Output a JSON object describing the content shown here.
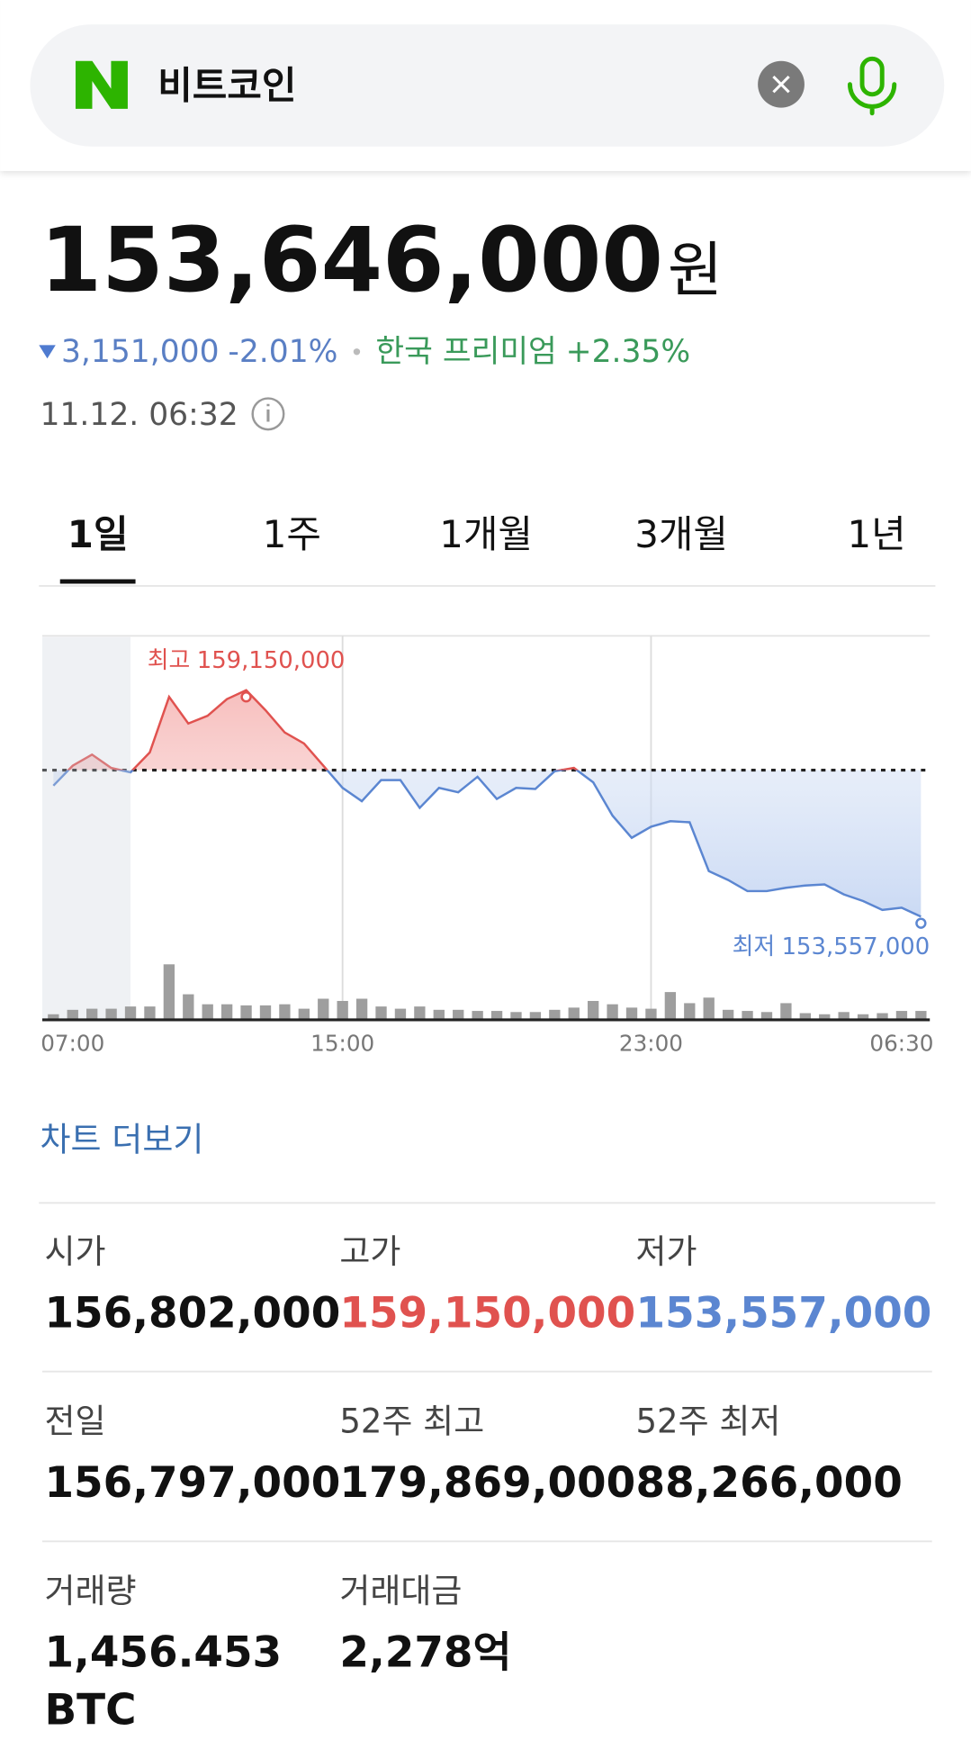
{
  "search": {
    "query": "비트코인"
  },
  "price": {
    "value": "153,646,000",
    "unit": "원"
  },
  "change": {
    "amount": "3,151,000",
    "percent": "-2.01%",
    "premium_label": "한국 프리미엄",
    "premium": "+2.35%"
  },
  "timestamp": "11.12. 06:32",
  "tabs": [
    "1일",
    "1주",
    "1개월",
    "3개월",
    "1년"
  ],
  "chart_data": {
    "type": "line",
    "categories": [
      null,
      "07:00",
      null,
      null,
      null,
      null,
      null,
      null,
      null,
      null,
      null,
      null,
      null,
      null,
      null,
      "15:00",
      null,
      null,
      null,
      null,
      null,
      null,
      null,
      null,
      null,
      null,
      null,
      null,
      null,
      null,
      null,
      "23:00",
      null,
      null,
      null,
      null,
      null,
      null,
      null,
      null,
      null,
      null,
      null,
      null,
      "06:30",
      null
    ],
    "values": [
      156792000,
      157285000,
      157560000,
      157231000,
      157121000,
      157614000,
      158985000,
      158327000,
      158519000,
      158931000,
      159150000,
      158656000,
      158108000,
      157834000,
      157285000,
      156737000,
      156408000,
      156929000,
      156929000,
      156243000,
      156737000,
      156627000,
      157011000,
      156463000,
      156737000,
      156710000,
      157148000,
      157231000,
      156874000,
      156052000,
      155503000,
      155777000,
      155914000,
      155887000,
      154681000,
      154461000,
      154187000,
      154187000,
      154269000,
      154324000,
      154352000,
      154105000,
      153940000,
      153721000,
      153776000,
      153557000
    ],
    "ylim": [
      152076000,
      160494000
    ],
    "baseline": 157176000,
    "volume": [
      5,
      9,
      10,
      10,
      12,
      12,
      50,
      23,
      14,
      14,
      13,
      13,
      14,
      10,
      19,
      17,
      19,
      12,
      10,
      12,
      9,
      9,
      8,
      8,
      7,
      7,
      9,
      11,
      17,
      14,
      11,
      10,
      25,
      15,
      20,
      9,
      8,
      7,
      15,
      6,
      5,
      7,
      5,
      6,
      8,
      8
    ],
    "volume_ylim": [
      0,
      60
    ],
    "annotations": {
      "high": {
        "label": "최고",
        "value_label": "159,150,000"
      },
      "low": {
        "label": "최저",
        "value_label": "153,557,000"
      }
    },
    "colors": {
      "up": "#e0524f",
      "down": "#5b86d1",
      "volume": "#9e9e9e"
    }
  },
  "more_link": "차트 더보기",
  "stats": [
    {
      "label": "시가",
      "value": "156,802,000"
    },
    {
      "label": "고가",
      "value": "159,150,000"
    },
    {
      "label": "저가",
      "value": "153,557,000"
    },
    {
      "label": "전일",
      "value": "156,797,000"
    },
    {
      "label": "52주 최고",
      "value": "179,869,000"
    },
    {
      "label": "52주 최저",
      "value": "88,266,000"
    },
    {
      "label": "거래량",
      "value": "1,456.453",
      "unit": "BTC"
    },
    {
      "label": "거래대금",
      "value": "2,278억"
    }
  ]
}
